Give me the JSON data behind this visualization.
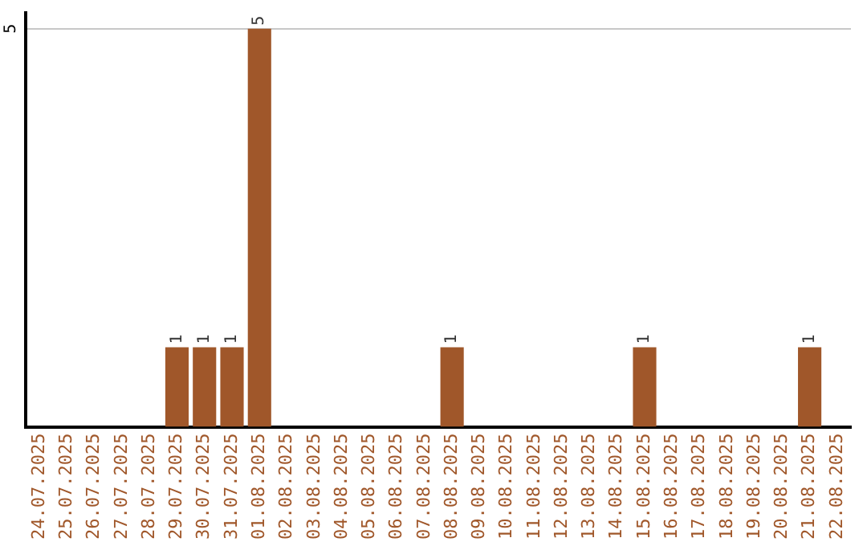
{
  "chart_data": {
    "type": "bar",
    "categories": [
      "24.07.2025",
      "25.07.2025",
      "26.07.2025",
      "27.07.2025",
      "28.07.2025",
      "29.07.2025",
      "30.07.2025",
      "31.07.2025",
      "01.08.2025",
      "02.08.2025",
      "03.08.2025",
      "04.08.2025",
      "05.08.2025",
      "06.08.2025",
      "07.08.2025",
      "08.08.2025",
      "09.08.2025",
      "10.08.2025",
      "11.08.2025",
      "12.08.2025",
      "13.08.2025",
      "14.08.2025",
      "15.08.2025",
      "16.08.2025",
      "17.08.2025",
      "18.08.2025",
      "19.08.2025",
      "20.08.2025",
      "21.08.2025",
      "22.08.2025"
    ],
    "values": [
      0,
      0,
      0,
      0,
      0,
      1,
      1,
      1,
      5,
      0,
      0,
      0,
      0,
      0,
      0,
      1,
      0,
      0,
      0,
      0,
      0,
      0,
      1,
      0,
      0,
      0,
      0,
      0,
      1,
      0
    ],
    "value_labels": [
      null,
      null,
      null,
      null,
      null,
      "1",
      "1",
      "1",
      "5",
      null,
      null,
      null,
      null,
      null,
      null,
      "1",
      null,
      null,
      null,
      null,
      null,
      null,
      "1",
      null,
      null,
      null,
      null,
      null,
      "1",
      null
    ],
    "color": "#a0572a",
    "ylim": [
      0,
      5.2
    ],
    "yticks": [
      5
    ],
    "grid": "y",
    "legend": false
  }
}
